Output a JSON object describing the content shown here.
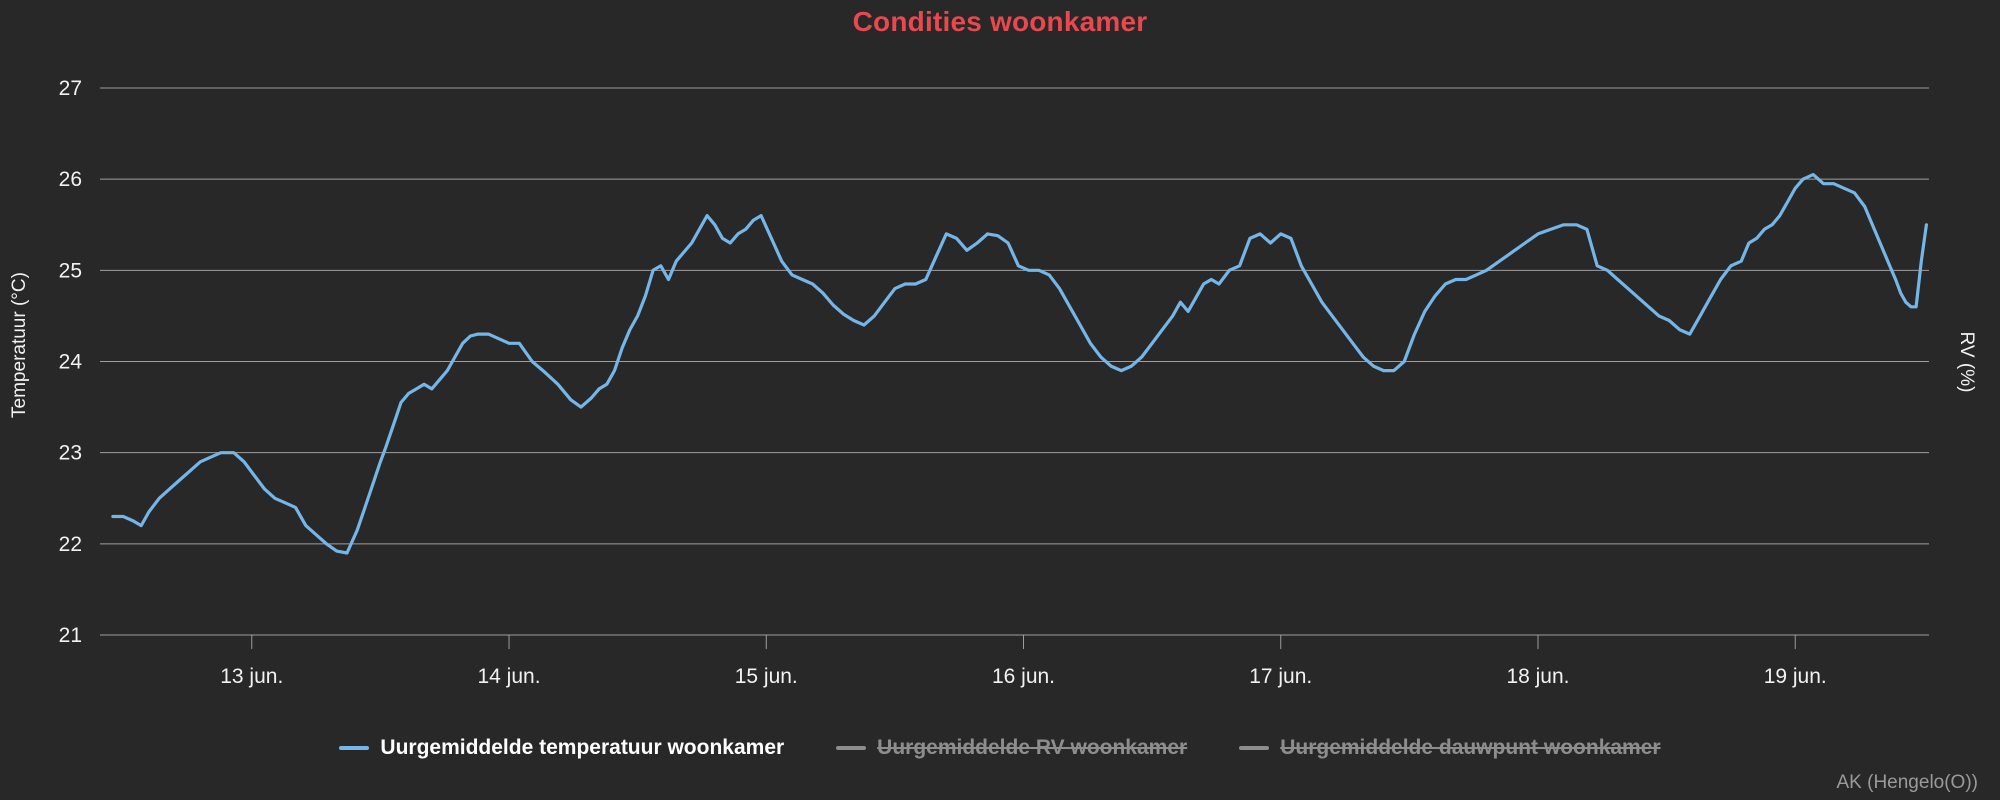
{
  "title": "Condities woonkamer",
  "attribution": "AK (Hengelo(O))",
  "colors": {
    "background": "#282828",
    "title": "#e8484e",
    "line": "#74b6e8",
    "grid": "#9e9e9e",
    "tick_text": "#f2f2f2",
    "legend_enabled_text": "#ffffff",
    "legend_disabled": "#8d8d8d",
    "attribution": "#9a9a9a"
  },
  "axes": {
    "left_label": "Temperatuur (°C)",
    "right_label": "RV (%)"
  },
  "legend": {
    "items": [
      {
        "label": "Uurgemiddelde temperatuur woonkamer",
        "enabled": true
      },
      {
        "label": "Uurgemiddelde RV woonkamer",
        "enabled": false
      },
      {
        "label": "Uurgemiddelde dauwpunt woonkamer",
        "enabled": false
      }
    ]
  },
  "chart_data": {
    "type": "line",
    "title": "Condities woonkamer",
    "xlabel": "",
    "ylabel": "Temperatuur (°C)",
    "ylabel_right": "RV (%)",
    "grid": true,
    "legend_position": "bottom",
    "ylim": [
      21,
      27
    ],
    "y_ticks": [
      27,
      26,
      25,
      24,
      23,
      22,
      21
    ],
    "xlim_days": [
      -0.59,
      6.52
    ],
    "x_unit": "days since 13 jun 00:00",
    "x_ticks": [
      {
        "pos": 0,
        "label": "13 jun."
      },
      {
        "pos": 1,
        "label": "14 jun."
      },
      {
        "pos": 2,
        "label": "15 jun."
      },
      {
        "pos": 3,
        "label": "16 jun."
      },
      {
        "pos": 4,
        "label": "17 jun."
      },
      {
        "pos": 5,
        "label": "18 jun."
      },
      {
        "pos": 6,
        "label": "19 jun."
      }
    ],
    "series": [
      {
        "name": "Uurgemiddelde temperatuur woonkamer",
        "unit": "°C",
        "color": "#74b6e8",
        "x_days": [
          -0.54,
          -0.5,
          -0.46,
          -0.43,
          -0.4,
          -0.36,
          -0.32,
          -0.28,
          -0.24,
          -0.2,
          -0.16,
          -0.12,
          -0.07,
          -0.03,
          0.01,
          0.05,
          0.09,
          0.13,
          0.17,
          0.21,
          0.25,
          0.29,
          0.33,
          0.37,
          0.41,
          0.44,
          0.47,
          0.5,
          0.52,
          0.55,
          0.58,
          0.61,
          0.64,
          0.67,
          0.7,
          0.73,
          0.76,
          0.79,
          0.82,
          0.85,
          0.88,
          0.92,
          0.96,
          1.0,
          1.04,
          1.09,
          1.14,
          1.19,
          1.24,
          1.28,
          1.32,
          1.35,
          1.38,
          1.41,
          1.44,
          1.47,
          1.5,
          1.53,
          1.56,
          1.59,
          1.62,
          1.65,
          1.68,
          1.71,
          1.74,
          1.77,
          1.8,
          1.83,
          1.86,
          1.89,
          1.92,
          1.95,
          1.98,
          2.02,
          2.06,
          2.1,
          2.14,
          2.18,
          2.22,
          2.26,
          2.3,
          2.34,
          2.38,
          2.42,
          2.46,
          2.5,
          2.54,
          2.58,
          2.62,
          2.66,
          2.7,
          2.74,
          2.78,
          2.82,
          2.86,
          2.9,
          2.94,
          2.98,
          3.02,
          3.06,
          3.1,
          3.14,
          3.18,
          3.22,
          3.26,
          3.3,
          3.34,
          3.38,
          3.42,
          3.46,
          3.5,
          3.54,
          3.58,
          3.61,
          3.64,
          3.67,
          3.7,
          3.73,
          3.76,
          3.8,
          3.84,
          3.88,
          3.92,
          3.96,
          4.0,
          4.04,
          4.08,
          4.12,
          4.16,
          4.2,
          4.24,
          4.28,
          4.32,
          4.36,
          4.4,
          4.44,
          4.48,
          4.52,
          4.56,
          4.6,
          4.64,
          4.68,
          4.72,
          4.76,
          4.8,
          4.85,
          4.9,
          4.95,
          5.0,
          5.05,
          5.1,
          5.15,
          5.19,
          5.23,
          5.27,
          5.31,
          5.35,
          5.39,
          5.43,
          5.47,
          5.51,
          5.55,
          5.59,
          5.63,
          5.67,
          5.71,
          5.75,
          5.79,
          5.82,
          5.85,
          5.88,
          5.91,
          5.94,
          5.97,
          6.0,
          6.03,
          6.07,
          6.11,
          6.15,
          6.19,
          6.23,
          6.27,
          6.3,
          6.33,
          6.36,
          6.39,
          6.41,
          6.43,
          6.45,
          6.47,
          6.49,
          6.51
        ],
        "values": [
          22.3,
          22.3,
          22.25,
          22.2,
          22.35,
          22.5,
          22.6,
          22.7,
          22.8,
          22.9,
          22.95,
          23.0,
          23.0,
          22.9,
          22.75,
          22.6,
          22.5,
          22.45,
          22.4,
          22.2,
          22.1,
          22.0,
          21.92,
          21.9,
          22.15,
          22.4,
          22.65,
          22.9,
          23.05,
          23.3,
          23.55,
          23.65,
          23.7,
          23.75,
          23.7,
          23.8,
          23.9,
          24.05,
          24.2,
          24.28,
          24.3,
          24.3,
          24.25,
          24.2,
          24.2,
          24.0,
          23.88,
          23.75,
          23.58,
          23.5,
          23.6,
          23.7,
          23.75,
          23.9,
          24.15,
          24.35,
          24.5,
          24.72,
          25.0,
          25.05,
          24.9,
          25.1,
          25.2,
          25.3,
          25.45,
          25.6,
          25.5,
          25.35,
          25.3,
          25.4,
          25.45,
          25.55,
          25.6,
          25.35,
          25.1,
          24.95,
          24.9,
          24.85,
          24.75,
          24.62,
          24.52,
          24.45,
          24.4,
          24.5,
          24.65,
          24.8,
          24.85,
          24.85,
          24.9,
          25.15,
          25.4,
          25.35,
          25.22,
          25.3,
          25.4,
          25.38,
          25.3,
          25.05,
          25.0,
          25.0,
          24.95,
          24.8,
          24.6,
          24.4,
          24.2,
          24.05,
          23.95,
          23.9,
          23.95,
          24.05,
          24.2,
          24.35,
          24.5,
          24.65,
          24.55,
          24.7,
          24.85,
          24.9,
          24.85,
          25.0,
          25.05,
          25.35,
          25.4,
          25.3,
          25.4,
          25.35,
          25.05,
          24.85,
          24.65,
          24.5,
          24.35,
          24.2,
          24.05,
          23.95,
          23.9,
          23.9,
          24.0,
          24.3,
          24.55,
          24.72,
          24.85,
          24.9,
          24.9,
          24.95,
          25.0,
          25.1,
          25.2,
          25.3,
          25.4,
          25.45,
          25.5,
          25.5,
          25.45,
          25.05,
          25.0,
          24.9,
          24.8,
          24.7,
          24.6,
          24.5,
          24.45,
          24.35,
          24.3,
          24.5,
          24.7,
          24.9,
          25.05,
          25.1,
          25.3,
          25.35,
          25.45,
          25.5,
          25.6,
          25.75,
          25.9,
          26.0,
          26.05,
          25.95,
          25.95,
          25.9,
          25.85,
          25.7,
          25.5,
          25.3,
          25.1,
          24.9,
          24.75,
          24.65,
          24.6,
          24.6,
          25.1,
          25.5
        ]
      }
    ]
  }
}
